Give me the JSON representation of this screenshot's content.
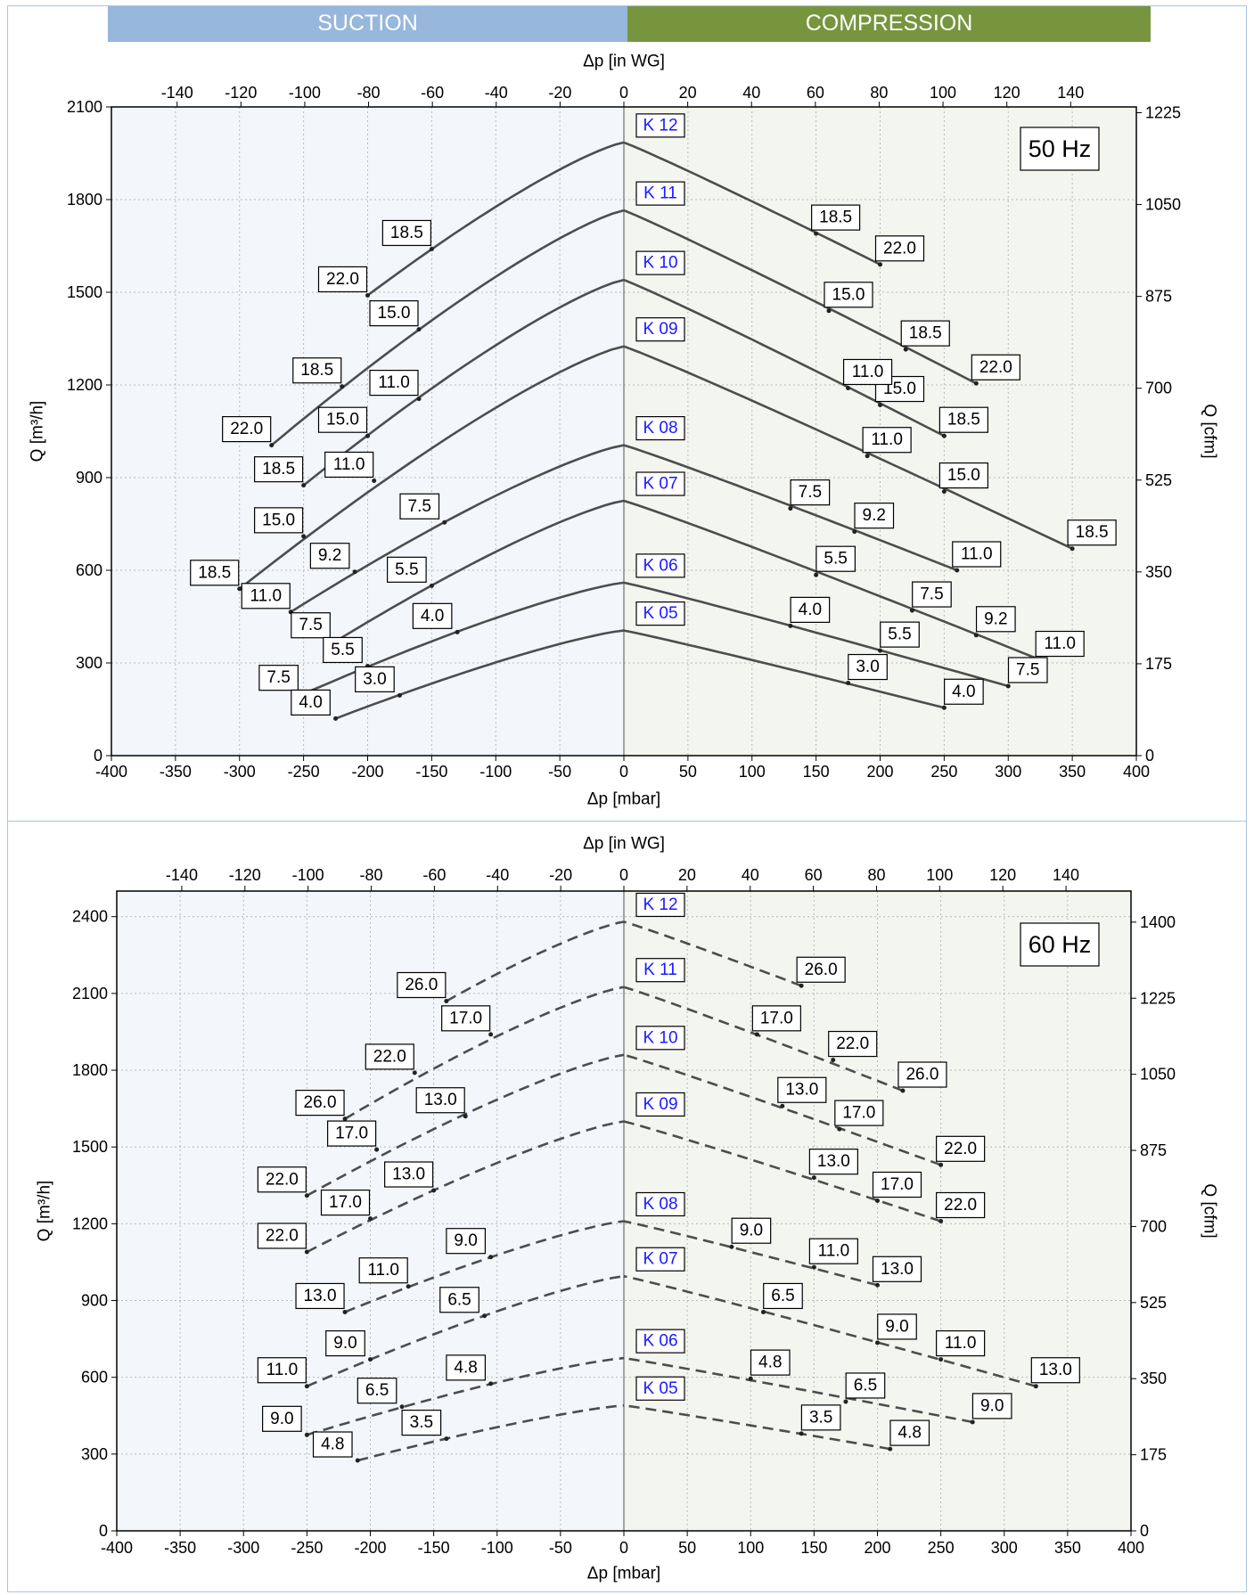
{
  "header": {
    "suction": "SUCTION",
    "compression": "COMPRESSION"
  },
  "chart_data": [
    {
      "type": "line",
      "title": "50 Hz",
      "line_style": "solid",
      "xlabel": "Δp [mbar]",
      "x2label": "Δp [in WG]",
      "ylabel": "Q [m³/h]",
      "y2label": "Q [cfm]",
      "xlim": [
        -400,
        400
      ],
      "ylim": [
        0,
        2100
      ],
      "xticks": [
        -400,
        -350,
        -300,
        -250,
        -200,
        -150,
        -100,
        -50,
        0,
        50,
        100,
        150,
        200,
        250,
        300,
        350,
        400
      ],
      "yticks": [
        0,
        300,
        600,
        900,
        1200,
        1500,
        1800,
        2100
      ],
      "x2ticks": [
        -140,
        -120,
        -100,
        -80,
        -60,
        -40,
        -20,
        0,
        20,
        40,
        60,
        80,
        100,
        120,
        140
      ],
      "y2ticks": [
        0,
        175,
        350,
        525,
        700,
        875,
        1050,
        1225
      ],
      "series": [
        {
          "name": "K 12",
          "suction": {
            "end": [
              -200,
              1490
            ],
            "points": [
              [
                -200,
                1490,
                "22.0"
              ],
              [
                -150,
                1640,
                "18.5"
              ]
            ]
          },
          "compression": {
            "end": [
              200,
              1590
            ],
            "points": [
              [
                150,
                1690,
                "18.5"
              ],
              [
                200,
                1590,
                "22.0"
              ]
            ]
          }
        },
        {
          "name": "K 11",
          "suction": {
            "end": [
              -275,
              1005
            ],
            "points": [
              [
                -275,
                1005,
                "22.0"
              ],
              [
                -220,
                1195,
                "18.5"
              ],
              [
                -160,
                1380,
                "15.0"
              ]
            ]
          },
          "compression": {
            "end": [
              275,
              1205
            ],
            "points": [
              [
                160,
                1440,
                "15.0"
              ],
              [
                220,
                1315,
                "18.5"
              ],
              [
                275,
                1205,
                "22.0"
              ]
            ]
          }
        },
        {
          "name": "K 10",
          "suction": {
            "end": [
              -250,
              875
            ],
            "points": [
              [
                -250,
                875,
                "18.5"
              ],
              [
                -200,
                1035,
                "15.0"
              ],
              [
                -160,
                1155,
                "11.0"
              ]
            ]
          },
          "compression": {
            "end": [
              250,
              1035
            ],
            "points": [
              [
                200,
                1135,
                "15.0"
              ],
              [
                250,
                1035,
                "18.5"
              ],
              [
                175,
                1190,
                "11.0"
              ]
            ]
          }
        },
        {
          "name": "K 09",
          "suction": {
            "end": [
              -300,
              540
            ],
            "points": [
              [
                -300,
                540,
                "18.5"
              ],
              [
                -250,
                710,
                "15.0"
              ],
              [
                -195,
                890,
                "11.0"
              ]
            ]
          },
          "compression": {
            "end": [
              350,
              670
            ],
            "points": [
              [
                190,
                970,
                "11.0"
              ],
              [
                250,
                855,
                "15.0"
              ],
              [
                350,
                670,
                "18.5"
              ]
            ]
          }
        },
        {
          "name": "K 08",
          "suction": {
            "end": [
              -260,
              465
            ],
            "points": [
              [
                -260,
                465,
                "11.0"
              ],
              [
                -210,
                595,
                "9.2"
              ],
              [
                -140,
                755,
                "7.5"
              ]
            ]
          },
          "compression": {
            "end": [
              260,
              600
            ],
            "points": [
              [
                130,
                800,
                "7.5"
              ],
              [
                180,
                725,
                "9.2"
              ],
              [
                260,
                600,
                "11.0"
              ]
            ]
          }
        },
        {
          "name": "K 07",
          "suction": {
            "end": [
              -225,
              370
            ],
            "points": [
              [
                -225,
                370,
                "7.5"
              ],
              [
                -150,
                550,
                "5.5"
              ]
            ]
          },
          "compression": {
            "end": [
              325,
              310
            ],
            "points": [
              [
                150,
                585,
                "5.5"
              ],
              [
                225,
                470,
                "7.5"
              ],
              [
                275,
                390,
                "9.2"
              ],
              [
                325,
                310,
                "11.0"
              ]
            ]
          }
        },
        {
          "name": "K 06",
          "suction": {
            "end": [
              -250,
              200
            ],
            "points": [
              [
                -250,
                200,
                "7.5"
              ],
              [
                -200,
                290,
                "5.5"
              ],
              [
                -130,
                400,
                "4.0"
              ]
            ]
          },
          "compression": {
            "end": [
              300,
              225
            ],
            "points": [
              [
                130,
                420,
                "4.0"
              ],
              [
                200,
                340,
                "5.5"
              ],
              [
                300,
                225,
                "7.5"
              ]
            ]
          }
        },
        {
          "name": "K 05",
          "suction": {
            "end": [
              -225,
              120
            ],
            "points": [
              [
                -225,
                120,
                "4.0"
              ],
              [
                -175,
                195,
                "3.0"
              ]
            ]
          },
          "compression": {
            "end": [
              250,
              155
            ],
            "points": [
              [
                175,
                235,
                "3.0"
              ],
              [
                250,
                155,
                "4.0"
              ]
            ]
          }
        }
      ],
      "peaks": {
        "K 12": 1985,
        "K 11": 1765,
        "K 10": 1540,
        "K 09": 1325,
        "K 08": 1005,
        "K 07": 825,
        "K 06": 560,
        "K 05": 405
      }
    },
    {
      "type": "line",
      "title": "60 Hz",
      "line_style": "dashed",
      "xlabel": "Δp [mbar]",
      "x2label": "Δp [in WG]",
      "ylabel": "Q [m³/h]",
      "y2label": "Q [cfm]",
      "xlim": [
        -400,
        400
      ],
      "ylim": [
        0,
        2500
      ],
      "xticks": [
        -400,
        -350,
        -300,
        -250,
        -200,
        -150,
        -100,
        -50,
        0,
        50,
        100,
        150,
        200,
        250,
        300,
        350,
        400
      ],
      "yticks": [
        0,
        300,
        600,
        900,
        1200,
        1500,
        1800,
        2100,
        2400
      ],
      "x2ticks": [
        -140,
        -120,
        -100,
        -80,
        -60,
        -40,
        -20,
        0,
        20,
        40,
        60,
        80,
        100,
        120,
        140
      ],
      "y2ticks": [
        0,
        175,
        350,
        525,
        700,
        875,
        1050,
        1225,
        1400
      ],
      "series": [
        {
          "name": "K 12",
          "suction": {
            "end": [
              -140,
              2070
            ],
            "points": [
              [
                -140,
                2070,
                "26.0"
              ],
              [
                -105,
                1940,
                "17.0"
              ]
            ]
          },
          "compression": {
            "end": [
              140,
              2130
            ],
            "points": [
              [
                140,
                2130,
                "26.0"
              ]
            ]
          }
        },
        {
          "name": "K 11",
          "suction": {
            "end": [
              -220,
              1610
            ],
            "points": [
              [
                -220,
                1610,
                "26.0"
              ],
              [
                -165,
                1790,
                "22.0"
              ]
            ]
          },
          "compression": {
            "end": [
              220,
              1720
            ],
            "points": [
              [
                105,
                1940,
                "17.0"
              ],
              [
                165,
                1840,
                "22.0"
              ],
              [
                220,
                1720,
                "26.0"
              ]
            ]
          }
        },
        {
          "name": "K 10",
          "suction": {
            "end": [
              -250,
              1310
            ],
            "points": [
              [
                -250,
                1310,
                "22.0"
              ],
              [
                -195,
                1490,
                "17.0"
              ],
              [
                -125,
                1620,
                "13.0"
              ]
            ]
          },
          "compression": {
            "end": [
              250,
              1430
            ],
            "points": [
              [
                125,
                1660,
                "13.0"
              ],
              [
                170,
                1570,
                "17.0"
              ],
              [
                250,
                1430,
                "22.0"
              ]
            ]
          }
        },
        {
          "name": "K 09",
          "suction": {
            "end": [
              -250,
              1090
            ],
            "points": [
              [
                -250,
                1090,
                "22.0"
              ],
              [
                -200,
                1220,
                "17.0"
              ],
              [
                -150,
                1330,
                "13.0"
              ]
            ]
          },
          "compression": {
            "end": [
              250,
              1210
            ],
            "points": [
              [
                150,
                1380,
                "13.0"
              ],
              [
                200,
                1290,
                "17.0"
              ],
              [
                250,
                1210,
                "22.0"
              ]
            ]
          }
        },
        {
          "name": "K 08",
          "suction": {
            "end": [
              -220,
              855
            ],
            "points": [
              [
                -220,
                855,
                "13.0"
              ],
              [
                -170,
                955,
                "11.0"
              ],
              [
                -105,
                1070,
                "9.0"
              ]
            ]
          },
          "compression": {
            "end": [
              200,
              960
            ],
            "points": [
              [
                85,
                1110,
                "9.0"
              ],
              [
                150,
                1030,
                "11.0"
              ],
              [
                200,
                960,
                "13.0"
              ]
            ]
          }
        },
        {
          "name": "K 07",
          "suction": {
            "end": [
              -250,
              565
            ],
            "points": [
              [
                -250,
                565,
                "11.0"
              ],
              [
                -200,
                670,
                "9.0"
              ],
              [
                -110,
                840,
                "6.5"
              ]
            ]
          },
          "compression": {
            "end": [
              325,
              565
            ],
            "points": [
              [
                110,
                855,
                "6.5"
              ],
              [
                200,
                735,
                "9.0"
              ],
              [
                250,
                670,
                "11.0"
              ],
              [
                325,
                565,
                "13.0"
              ]
            ]
          }
        },
        {
          "name": "K 06",
          "suction": {
            "end": [
              -250,
              375
            ],
            "points": [
              [
                -250,
                375,
                "9.0"
              ],
              [
                -175,
                485,
                "6.5"
              ],
              [
                -105,
                575,
                "4.8"
              ]
            ]
          },
          "compression": {
            "end": [
              275,
              425
            ],
            "points": [
              [
                100,
                595,
                "4.8"
              ],
              [
                175,
                505,
                "6.5"
              ],
              [
                275,
                425,
                "9.0"
              ]
            ]
          }
        },
        {
          "name": "K 05",
          "suction": {
            "end": [
              -210,
              275
            ],
            "points": [
              [
                -210,
                275,
                "4.8"
              ],
              [
                -140,
                360,
                "3.5"
              ]
            ]
          },
          "compression": {
            "end": [
              210,
              320
            ],
            "points": [
              [
                140,
                380,
                "3.5"
              ],
              [
                210,
                320,
                "4.8"
              ]
            ]
          }
        }
      ],
      "peaks": {
        "K 12": 2380,
        "K 11": 2125,
        "K 10": 1860,
        "K 09": 1600,
        "K 08": 1210,
        "K 07": 995,
        "K 06": 675,
        "K 05": 490
      }
    }
  ]
}
